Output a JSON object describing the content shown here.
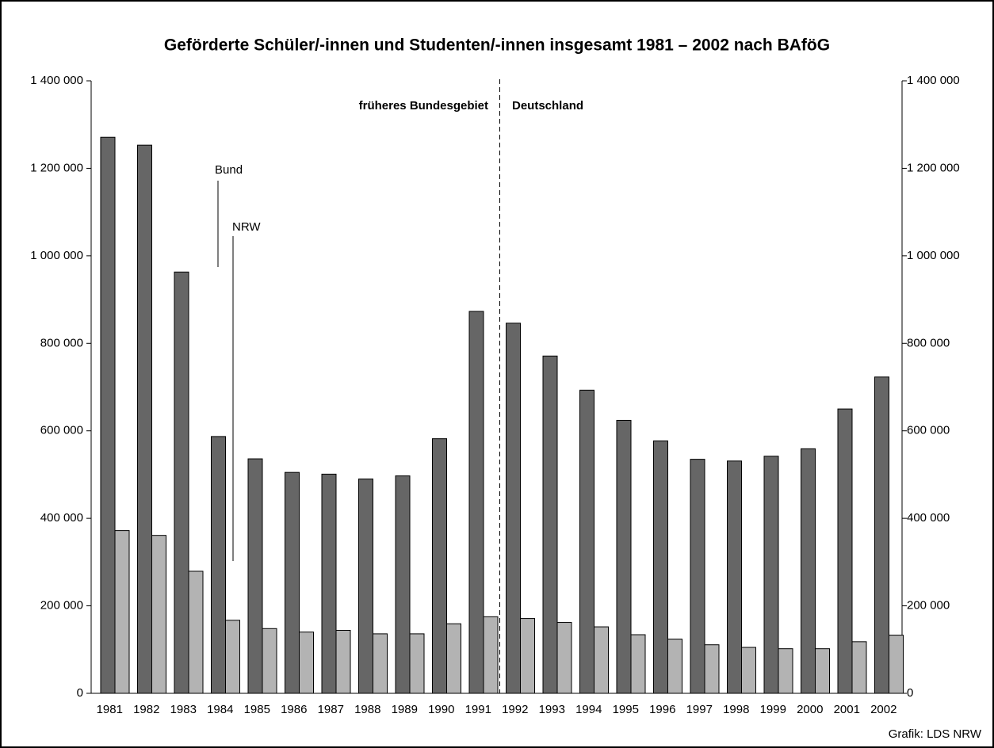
{
  "chart_data": {
    "type": "bar",
    "title": "Geförderte Schüler/-innen und Studenten/-innen insgesamt 1981 – 2002 nach BAföG",
    "categories": [
      "1981",
      "1982",
      "1983",
      "1984",
      "1985",
      "1986",
      "1987",
      "1988",
      "1989",
      "1990",
      "1991",
      "1992",
      "1993",
      "1994",
      "1995",
      "1996",
      "1997",
      "1998",
      "1999",
      "2000",
      "2001",
      "2002"
    ],
    "series": [
      {
        "name": "Bund",
        "color": "#666666",
        "values": [
          1271000,
          1253000,
          963000,
          587000,
          536000,
          505000,
          501000,
          490000,
          497000,
          582000,
          873000,
          846000,
          771000,
          693000,
          624000,
          577000,
          535000,
          531000,
          542000,
          559000,
          650000,
          723000
        ]
      },
      {
        "name": "NRW",
        "color": "#b3b3b3",
        "values": [
          372000,
          361000,
          279000,
          167000,
          148000,
          140000,
          144000,
          136000,
          136000,
          159000,
          175000,
          171000,
          162000,
          152000,
          134000,
          124000,
          111000,
          105000,
          102000,
          102000,
          118000,
          133000
        ]
      }
    ],
    "ylim": [
      0,
      1400000
    ],
    "yticks": [
      0,
      {
        "value": 200000,
        "label": "200 000"
      },
      {
        "value": 400000,
        "label": "400 000"
      },
      {
        "value": 600000,
        "label": "600 000"
      },
      {
        "value": 800000,
        "label": "800 000"
      },
      {
        "value": 1000000,
        "label": "1 000 000"
      },
      {
        "value": 1200000,
        "label": "1 200 000"
      },
      {
        "value": 1400000,
        "label": "1 400 000"
      }
    ],
    "y2lim": [
      0,
      1400000
    ],
    "y2ticks": [
      0,
      {
        "value": 200000,
        "label": "200 000"
      },
      {
        "value": 400000,
        "label": "400 000"
      },
      {
        "value": 600000,
        "label": "600 000"
      },
      {
        "value": 800000,
        "label": "800 000"
      },
      {
        "value": 1000000,
        "label": "1 000 000"
      },
      {
        "value": 1200000,
        "label": "1 200 000"
      },
      {
        "value": 1400000,
        "label": "1 400 000"
      }
    ],
    "annotations": [
      "früheres Bundesgebiet",
      "Deutschland"
    ],
    "source": "Grafik: LDS NRW"
  }
}
